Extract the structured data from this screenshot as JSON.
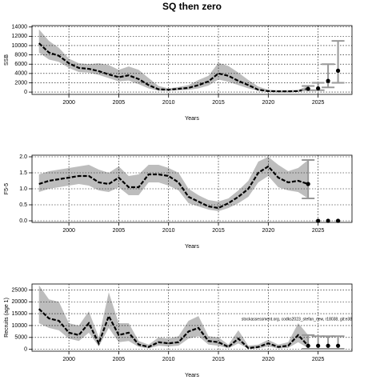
{
  "title": "SQ then zero",
  "chart_data": [
    {
      "type": "line",
      "x_label": "Years",
      "y_label": "SSB",
      "xlim": [
        1996.3,
        2028.4
      ],
      "xticks": [
        2000,
        2005,
        2010,
        2015,
        2020,
        2025
      ],
      "ylim": [
        -500,
        14300
      ],
      "yticks": [
        0,
        2000,
        4000,
        6000,
        8000,
        10000,
        12000,
        14000
      ],
      "grid": true,
      "color": "#000000",
      "band_color": "#bdbdbd",
      "x": [
        1997,
        1998,
        1999,
        2000,
        2001,
        2002,
        2003,
        2004,
        2005,
        2006,
        2007,
        2008,
        2009,
        2010,
        2011,
        2012,
        2013,
        2014,
        2015,
        2016,
        2017,
        2018,
        2019,
        2020,
        2021,
        2022,
        2023,
        2024
      ],
      "values": [
        10500,
        8500,
        7800,
        6200,
        5200,
        5000,
        4500,
        3800,
        3200,
        3600,
        2800,
        1500,
        600,
        500,
        700,
        900,
        1500,
        2300,
        4000,
        3500,
        2400,
        1500,
        500,
        200,
        150,
        150,
        200,
        700
      ],
      "lower": [
        8500,
        7000,
        6500,
        5200,
        4300,
        4200,
        3700,
        3000,
        2300,
        2500,
        1700,
        800,
        300,
        300,
        400,
        500,
        800,
        1400,
        2700,
        2200,
        1500,
        800,
        300,
        100,
        50,
        50,
        100,
        400
      ],
      "upper": [
        13500,
        11000,
        9500,
        7200,
        6200,
        6000,
        6200,
        5800,
        4800,
        5500,
        4800,
        3000,
        1300,
        800,
        1100,
        1500,
        2600,
        3500,
        6300,
        5600,
        4200,
        2600,
        1200,
        500,
        400,
        400,
        500,
        1300
      ],
      "projection": {
        "x": [
          2024,
          2025,
          2026,
          2027
        ],
        "values": [
          700,
          800,
          2400,
          4600
        ],
        "lower": [
          400,
          400,
          1000,
          2000
        ],
        "upper": [
          1300,
          2000,
          6000,
          11000
        ],
        "color": "#999999"
      }
    },
    {
      "type": "line",
      "x_label": "Years",
      "y_label": "F5-5",
      "xlim": [
        1996.3,
        2028.4
      ],
      "xticks": [
        2000,
        2005,
        2010,
        2015,
        2020,
        2025
      ],
      "ylim": [
        -0.05,
        2.05
      ],
      "yticks": [
        {
          "value": 0,
          "label": "0.0"
        },
        {
          "value": 0.5,
          "label": "0.5"
        },
        {
          "value": 1,
          "label": "1.0"
        },
        {
          "value": 1.5,
          "label": "1.5"
        },
        {
          "value": 2,
          "label": "2.0"
        }
      ],
      "grid": true,
      "color": "#000000",
      "band_color": "#bdbdbd",
      "x": [
        1997,
        1998,
        1999,
        2000,
        2001,
        2002,
        2003,
        2004,
        2005,
        2006,
        2007,
        2008,
        2009,
        2010,
        2011,
        2012,
        2013,
        2014,
        2015,
        2016,
        2017,
        2018,
        2019,
        2020,
        2021,
        2022,
        2023,
        2024
      ],
      "values": [
        1.15,
        1.25,
        1.3,
        1.35,
        1.4,
        1.4,
        1.2,
        1.15,
        1.35,
        1.05,
        1.05,
        1.45,
        1.45,
        1.4,
        1.2,
        0.75,
        0.6,
        0.45,
        0.4,
        0.55,
        0.75,
        1.0,
        1.5,
        1.7,
        1.35,
        1.2,
        1.25,
        1.15
      ],
      "lower": [
        0.9,
        1.0,
        1.05,
        1.1,
        1.15,
        1.1,
        0.95,
        0.9,
        1.05,
        0.8,
        0.8,
        1.2,
        1.2,
        1.1,
        0.95,
        0.55,
        0.45,
        0.35,
        0.3,
        0.4,
        0.55,
        0.75,
        1.2,
        1.4,
        1.05,
        0.95,
        0.9,
        0.7
      ],
      "upper": [
        1.45,
        1.55,
        1.6,
        1.65,
        1.7,
        1.75,
        1.6,
        1.5,
        1.7,
        1.4,
        1.45,
        1.75,
        1.75,
        1.65,
        1.5,
        1.0,
        0.8,
        0.65,
        0.6,
        0.7,
        0.95,
        1.25,
        1.85,
        2.0,
        1.75,
        1.55,
        1.65,
        1.9
      ],
      "projection": {
        "x": [
          2024,
          2025,
          2026,
          2027
        ],
        "values": [
          1.15,
          0,
          0,
          0
        ],
        "lower": [
          0.7,
          null,
          null,
          null
        ],
        "upper": [
          1.9,
          null,
          null,
          null
        ],
        "color": "#999999"
      }
    },
    {
      "type": "line",
      "x_label": "Years",
      "y_label": "Recruits (age 1)",
      "xlim": [
        1996.3,
        2028.4
      ],
      "xticks": [
        2000,
        2005,
        2010,
        2015,
        2020,
        2025
      ],
      "ylim": [
        -800,
        27500
      ],
      "yticks": [
        0,
        5000,
        10000,
        15000,
        20000,
        25000
      ],
      "grid": true,
      "color": "#000000",
      "band_color": "#bdbdbd",
      "annotation": "stockassessment.org, codks2023_stefan_new, r18038, git:e38",
      "x": [
        1997,
        1998,
        1999,
        2000,
        2001,
        2002,
        2003,
        2004,
        2005,
        2006,
        2007,
        2008,
        2009,
        2010,
        2011,
        2012,
        2013,
        2014,
        2015,
        2016,
        2017,
        2018,
        2019,
        2020,
        2021,
        2022,
        2023,
        2024
      ],
      "values": [
        17000,
        13000,
        12000,
        7000,
        6000,
        11000,
        2500,
        14000,
        6000,
        7000,
        2000,
        1000,
        3000,
        2500,
        3000,
        7500,
        9000,
        3500,
        3000,
        1000,
        4500,
        500,
        1000,
        2500,
        1000,
        1500,
        6000,
        1500
      ],
      "lower": [
        11000,
        9000,
        8000,
        4500,
        3500,
        7000,
        1200,
        9000,
        3000,
        3500,
        1000,
        400,
        1500,
        1200,
        1500,
        4500,
        5500,
        2000,
        1500,
        400,
        2500,
        200,
        400,
        1200,
        400,
        600,
        3000,
        500
      ],
      "upper": [
        27000,
        21000,
        20000,
        11000,
        10000,
        16000,
        5000,
        24000,
        11000,
        11000,
        3500,
        2000,
        5000,
        4500,
        5500,
        12000,
        14000,
        5500,
        5000,
        2000,
        8000,
        1500,
        2000,
        4000,
        2000,
        3000,
        11000,
        6000
      ],
      "projection": {
        "x": [
          2024,
          2025,
          2026,
          2027
        ],
        "values": [
          1500,
          1500,
          1500,
          1500
        ],
        "lower": [
          200,
          200,
          200,
          200
        ],
        "upper": [
          6000,
          5500,
          5500,
          5500
        ],
        "color": "#999999"
      }
    }
  ]
}
